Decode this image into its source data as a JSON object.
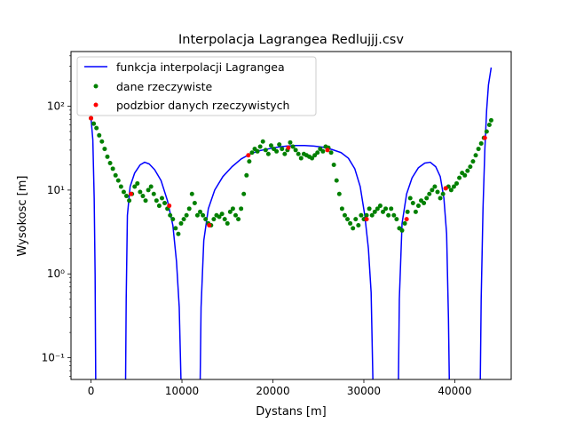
{
  "chart_data": {
    "type": "line",
    "title": "Interpolacja Lagrangea Redlujjj.csv",
    "xlabel": "Dystans [m]",
    "ylabel": "Wysokosc [m]",
    "x_scale": "linear",
    "y_scale": "log",
    "xlim": [
      -2200,
      46200
    ],
    "ylim": [
      0.055,
      450
    ],
    "x_ticks": [
      0,
      10000,
      20000,
      30000,
      40000
    ],
    "x_tick_labels": [
      "0",
      "10000",
      "20000",
      "30000",
      "40000"
    ],
    "y_ticks": [
      0.1,
      1,
      10,
      100
    ],
    "y_tick_labels": [
      "10⁻¹",
      "10⁰",
      "10¹",
      "10²"
    ],
    "grid": false,
    "legend_position": "upper-left",
    "series": [
      {
        "name": "funkcja interpolacji Lagrangea",
        "kind": "line",
        "color": "#0000ff",
        "points": [
          [
            0,
            72
          ],
          [
            200,
            40
          ],
          [
            350,
            8
          ],
          [
            450,
            1.0
          ],
          [
            520,
            0.05
          ],
          [
            3800,
            0.05
          ],
          [
            3870,
            0.5
          ],
          [
            4000,
            5
          ],
          [
            4300,
            11
          ],
          [
            4800,
            16
          ],
          [
            5400,
            20
          ],
          [
            5900,
            21.5
          ],
          [
            6400,
            20.5
          ],
          [
            7000,
            17.5
          ],
          [
            7700,
            13
          ],
          [
            8400,
            7.5
          ],
          [
            9000,
            3.8
          ],
          [
            9400,
            1.4
          ],
          [
            9700,
            0.4
          ],
          [
            9900,
            0.05
          ],
          [
            12000,
            0.05
          ],
          [
            12100,
            0.4
          ],
          [
            12400,
            2.5
          ],
          [
            12900,
            6
          ],
          [
            13600,
            10
          ],
          [
            14500,
            14.5
          ],
          [
            15500,
            19
          ],
          [
            16500,
            23.5
          ],
          [
            17500,
            27
          ],
          [
            18500,
            29.5
          ],
          [
            19500,
            31
          ],
          [
            20500,
            32.5
          ],
          [
            21500,
            33.5
          ],
          [
            22500,
            34
          ],
          [
            23500,
            34
          ],
          [
            24500,
            33.5
          ],
          [
            25500,
            32.5
          ],
          [
            26500,
            30.5
          ],
          [
            27500,
            28
          ],
          [
            28300,
            24
          ],
          [
            29000,
            18
          ],
          [
            29600,
            11
          ],
          [
            30100,
            5
          ],
          [
            30500,
            2
          ],
          [
            30800,
            0.6
          ],
          [
            31000,
            0.05
          ],
          [
            33800,
            0.05
          ],
          [
            33900,
            0.5
          ],
          [
            34200,
            4
          ],
          [
            34700,
            9
          ],
          [
            35300,
            14
          ],
          [
            36000,
            18.5
          ],
          [
            36700,
            21
          ],
          [
            37300,
            21.5
          ],
          [
            37900,
            19
          ],
          [
            38400,
            14.5
          ],
          [
            38800,
            8
          ],
          [
            39100,
            3
          ],
          [
            39300,
            0.3
          ],
          [
            39400,
            0.05
          ],
          [
            42800,
            0.05
          ],
          [
            42900,
            0.5
          ],
          [
            43100,
            6
          ],
          [
            43300,
            30
          ],
          [
            43500,
            90
          ],
          [
            43700,
            180
          ],
          [
            44000,
            290
          ]
        ]
      },
      {
        "name": "dane rzeczywiste",
        "kind": "scatter",
        "color": "#008000",
        "points": [
          [
            0,
            72
          ],
          [
            300,
            62
          ],
          [
            600,
            55
          ],
          [
            900,
            45
          ],
          [
            1200,
            38
          ],
          [
            1500,
            31
          ],
          [
            1800,
            25
          ],
          [
            2100,
            21
          ],
          [
            2400,
            18
          ],
          [
            2700,
            15
          ],
          [
            3000,
            13
          ],
          [
            3300,
            11
          ],
          [
            3600,
            9.5
          ],
          [
            3900,
            8.5
          ],
          [
            4200,
            7.5
          ],
          [
            4500,
            9
          ],
          [
            4800,
            11
          ],
          [
            5100,
            12
          ],
          [
            5400,
            9.5
          ],
          [
            5700,
            8.5
          ],
          [
            6000,
            7.5
          ],
          [
            6300,
            10
          ],
          [
            6600,
            11
          ],
          [
            6900,
            9
          ],
          [
            7200,
            7.5
          ],
          [
            7500,
            6.5
          ],
          [
            7800,
            8
          ],
          [
            8100,
            7
          ],
          [
            8400,
            6
          ],
          [
            8700,
            5
          ],
          [
            9000,
            4.5
          ],
          [
            9300,
            3.5
          ],
          [
            9600,
            3
          ],
          [
            9900,
            4
          ],
          [
            10200,
            4.5
          ],
          [
            10500,
            5
          ],
          [
            10800,
            6
          ],
          [
            11100,
            9
          ],
          [
            11400,
            7
          ],
          [
            11700,
            5
          ],
          [
            12000,
            5.5
          ],
          [
            12300,
            5
          ],
          [
            12600,
            4.5
          ],
          [
            12900,
            4
          ],
          [
            13200,
            3.8
          ],
          [
            13500,
            4.5
          ],
          [
            13800,
            5
          ],
          [
            14100,
            4.8
          ],
          [
            14400,
            5.2
          ],
          [
            14700,
            4.5
          ],
          [
            15000,
            4
          ],
          [
            15300,
            5.5
          ],
          [
            15600,
            6
          ],
          [
            15900,
            5
          ],
          [
            16200,
            4.5
          ],
          [
            16500,
            6
          ],
          [
            16800,
            9
          ],
          [
            17100,
            15
          ],
          [
            17400,
            22
          ],
          [
            17700,
            28
          ],
          [
            18000,
            31
          ],
          [
            18300,
            29
          ],
          [
            18600,
            33
          ],
          [
            18900,
            38
          ],
          [
            19200,
            30
          ],
          [
            19500,
            27
          ],
          [
            19800,
            34
          ],
          [
            20100,
            31
          ],
          [
            20400,
            29
          ],
          [
            20700,
            35
          ],
          [
            21000,
            31
          ],
          [
            21300,
            27
          ],
          [
            21600,
            30
          ],
          [
            21900,
            37
          ],
          [
            22200,
            33
          ],
          [
            22500,
            30
          ],
          [
            22800,
            27
          ],
          [
            23100,
            24
          ],
          [
            23400,
            27
          ],
          [
            23700,
            26
          ],
          [
            24000,
            25
          ],
          [
            24300,
            24
          ],
          [
            24600,
            26
          ],
          [
            24900,
            28
          ],
          [
            25200,
            31
          ],
          [
            25500,
            29
          ],
          [
            25800,
            33
          ],
          [
            26100,
            32
          ],
          [
            26400,
            28
          ],
          [
            26700,
            20
          ],
          [
            27000,
            13
          ],
          [
            27300,
            9
          ],
          [
            27600,
            6
          ],
          [
            27900,
            5
          ],
          [
            28200,
            4.5
          ],
          [
            28500,
            4
          ],
          [
            28800,
            3.5
          ],
          [
            29100,
            4.5
          ],
          [
            29400,
            3.8
          ],
          [
            29700,
            5
          ],
          [
            30000,
            4.5
          ],
          [
            30300,
            5
          ],
          [
            30600,
            6
          ],
          [
            30900,
            5
          ],
          [
            31200,
            5.5
          ],
          [
            31500,
            6
          ],
          [
            31800,
            6.5
          ],
          [
            32100,
            5.5
          ],
          [
            32400,
            6
          ],
          [
            32700,
            5
          ],
          [
            33000,
            6
          ],
          [
            33300,
            5
          ],
          [
            33600,
            4.5
          ],
          [
            33900,
            3.5
          ],
          [
            34200,
            3.3
          ],
          [
            34500,
            4
          ],
          [
            34800,
            5.5
          ],
          [
            35100,
            8
          ],
          [
            35400,
            7
          ],
          [
            35700,
            5.5
          ],
          [
            36000,
            6.5
          ],
          [
            36300,
            7.5
          ],
          [
            36600,
            7
          ],
          [
            36900,
            8
          ],
          [
            37200,
            9
          ],
          [
            37500,
            10
          ],
          [
            37800,
            11
          ],
          [
            38100,
            9.5
          ],
          [
            38400,
            8
          ],
          [
            38700,
            9
          ],
          [
            39000,
            10.5
          ],
          [
            39300,
            11
          ],
          [
            39600,
            10
          ],
          [
            39900,
            11
          ],
          [
            40200,
            12
          ],
          [
            40500,
            14
          ],
          [
            40800,
            16
          ],
          [
            41100,
            15
          ],
          [
            41400,
            17
          ],
          [
            41700,
            19
          ],
          [
            42000,
            22
          ],
          [
            42300,
            26
          ],
          [
            42600,
            31
          ],
          [
            42900,
            36
          ],
          [
            43200,
            42
          ],
          [
            43500,
            50
          ],
          [
            43800,
            60
          ],
          [
            44000,
            68
          ]
        ]
      },
      {
        "name": "podzbior danych rzeczywistych",
        "kind": "scatter",
        "color": "#ff0000",
        "points": [
          [
            0,
            72
          ],
          [
            4400,
            9
          ],
          [
            8600,
            6.5
          ],
          [
            13000,
            3.8
          ],
          [
            17300,
            26
          ],
          [
            21700,
            32
          ],
          [
            26000,
            30
          ],
          [
            30300,
            4.5
          ],
          [
            34700,
            4.5
          ],
          [
            39000,
            10.5
          ],
          [
            43300,
            42
          ]
        ]
      }
    ]
  }
}
